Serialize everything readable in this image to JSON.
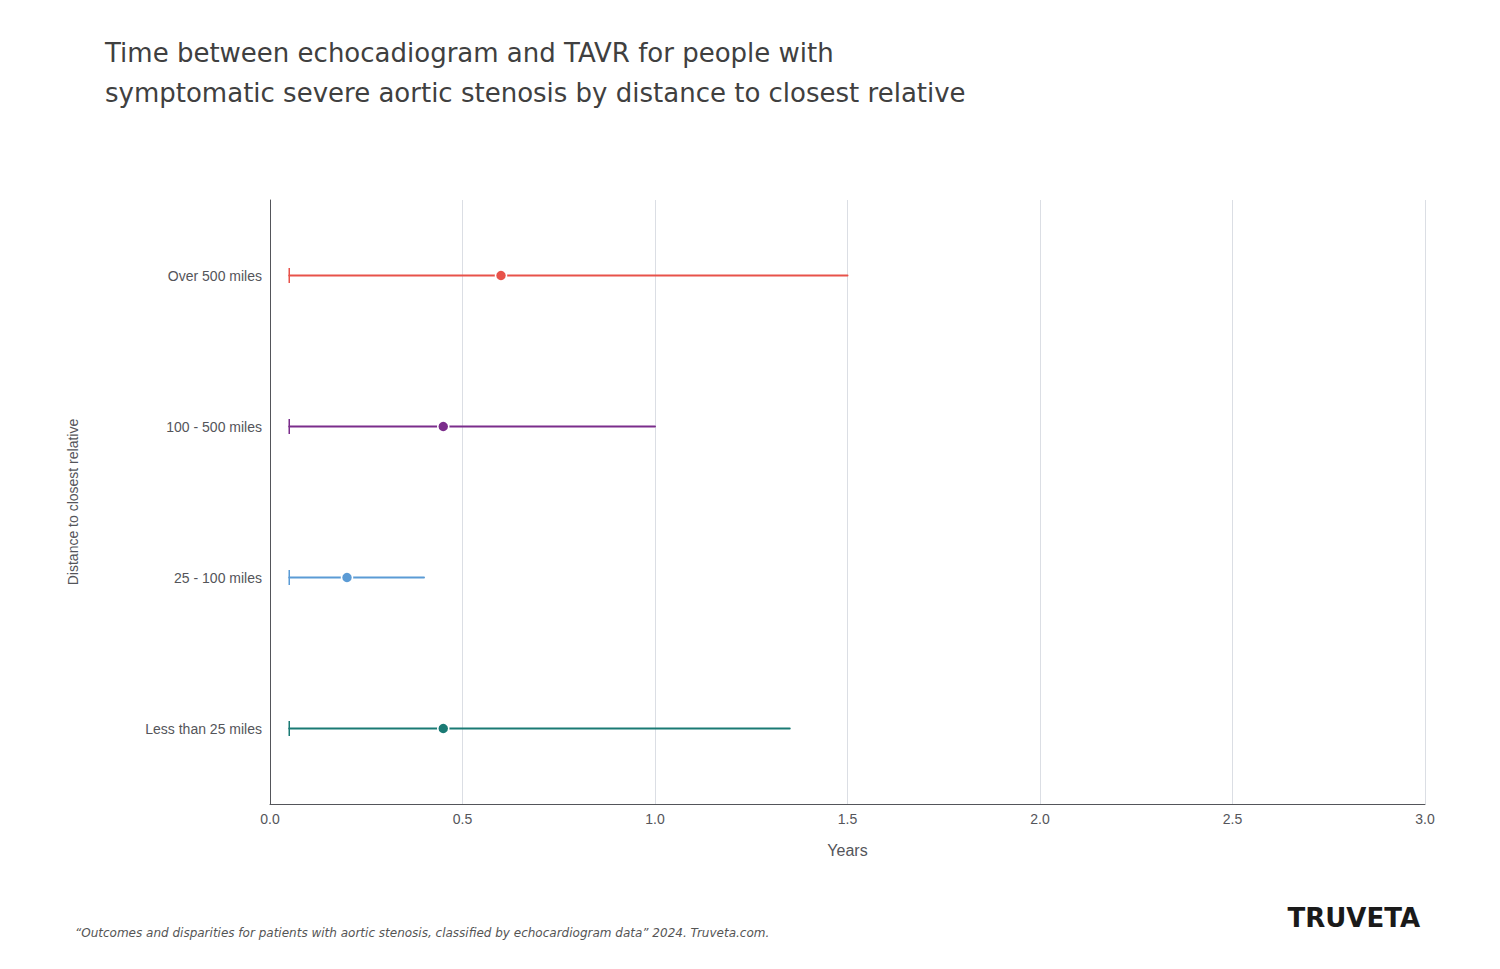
{
  "chart_data": {
    "type": "dumbbell",
    "title": "Time between echocadiogram and TAVR for people with",
    "subtitle": "symptomatic severe aortic stenosis by distance to closest relative",
    "xlabel": "Years",
    "ylabel": "Distance to closest relative",
    "categories": [
      "Over 500 miles",
      "100 - 500 miles",
      "25 - 100 miles",
      "Less than 25 miles"
    ],
    "values": [
      0.6,
      0.45,
      0.2,
      0.45
    ],
    "starts": [
      0.05,
      0.05,
      0.05,
      0.05
    ],
    "ends": [
      1.5,
      1.0,
      0.4,
      1.35
    ],
    "colors": [
      "#e8524a",
      "#7b2d8b",
      "#5b9bd5",
      "#1a7a74"
    ],
    "xlim": [
      0.0,
      3.0
    ],
    "xticks": [
      {
        "value": 0,
        "label": "0.0"
      },
      0.5,
      {
        "value": 1,
        "label": "1.0"
      },
      1.5,
      {
        "value": 2,
        "label": "2.0"
      },
      2.5,
      {
        "value": 3,
        "label": "3.0"
      }
    ],
    "grid": true,
    "annotations": [
      "“Outcomes and disparities for patients with aortic stenosis, classified by echocardiogram data” 2024. Truveta.com.",
      "TRUVETA"
    ]
  }
}
